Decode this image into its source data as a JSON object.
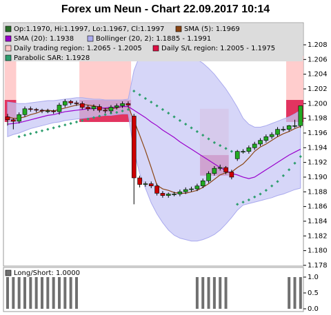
{
  "chart_data": [
    {
      "type": "candlestick",
      "title": "Forex um Neun - Chart 22.09.2017 10:14",
      "ohlc_label": "Op:1.1970, Hi:1.1997, Lo:1.1967, Cl:1.1997",
      "ohlc_color": "#2a6e2a",
      "up_color": "#22aa22",
      "down_color": "#cc0000",
      "candles": {
        "open": [
          1.1982,
          1.1978,
          1.1976,
          1.1985,
          1.1993,
          1.1992,
          1.1991,
          1.199,
          1.199,
          1.1989,
          1.1998,
          1.2003,
          1.2001,
          1.2,
          1.1995,
          1.1993,
          1.1996,
          1.1991,
          1.199,
          1.1995,
          1.1997,
          1.2,
          1.1983,
          1.1899,
          1.189,
          1.1891,
          1.1888,
          1.1878,
          1.1875,
          1.1877,
          1.1877,
          1.188,
          1.1883,
          1.1884,
          1.1888,
          1.1895,
          1.1905,
          1.1912,
          1.1913,
          1.1907,
          1.1925,
          1.1935,
          1.1935,
          1.194,
          1.1945,
          1.195,
          1.1955,
          1.1958,
          1.1965,
          1.1965,
          1.197,
          1.197
        ],
        "high": [
          1.1986,
          1.198,
          1.1988,
          1.1996,
          1.1996,
          1.1994,
          1.1993,
          1.1993,
          1.1992,
          1.2001,
          1.2006,
          1.2005,
          1.2004,
          1.2003,
          1.1998,
          1.1999,
          1.1999,
          1.1994,
          1.1998,
          1.2,
          1.2003,
          1.2003,
          1.1986,
          1.1902,
          1.1894,
          1.1894,
          1.1891,
          1.1881,
          1.1879,
          1.188,
          1.1883,
          1.1886,
          1.1887,
          1.1891,
          1.1898,
          1.1908,
          1.1915,
          1.1917,
          1.1915,
          1.191,
          1.1937,
          1.1938,
          1.1943,
          1.1948,
          1.1953,
          1.1958,
          1.1961,
          1.1968,
          1.1969,
          1.1971,
          1.1978,
          1.1997
        ],
        "low": [
          1.197,
          1.1965,
          1.1973,
          1.1982,
          1.1989,
          1.1988,
          1.1987,
          1.1987,
          1.1986,
          1.1985,
          1.1995,
          1.1998,
          1.1997,
          1.1992,
          1.199,
          1.199,
          1.1988,
          1.1987,
          1.1987,
          1.1992,
          1.1994,
          1.1995,
          1.1863,
          1.1886,
          1.1887,
          1.1885,
          1.1875,
          1.1872,
          1.1872,
          1.1874,
          1.1874,
          1.1877,
          1.188,
          1.1881,
          1.1885,
          1.1892,
          1.1902,
          1.1909,
          1.1904,
          1.1897,
          1.1922,
          1.1932,
          1.1932,
          1.1937,
          1.1942,
          1.1947,
          1.1952,
          1.1955,
          1.1962,
          1.1962,
          1.1967,
          1.1967
        ],
        "close": [
          1.1978,
          1.1976,
          1.1985,
          1.1993,
          1.1992,
          1.1991,
          1.199,
          1.199,
          1.1989,
          1.1998,
          1.2003,
          1.2001,
          1.2,
          1.1995,
          1.1993,
          1.1996,
          1.1991,
          1.199,
          1.1995,
          1.1997,
          1.2,
          1.1998,
          1.1899,
          1.189,
          1.1891,
          1.1888,
          1.1878,
          1.1875,
          1.1877,
          1.1877,
          1.188,
          1.1883,
          1.1884,
          1.1888,
          1.1895,
          1.1905,
          1.1912,
          1.1913,
          1.1907,
          1.19,
          1.1935,
          1.1935,
          1.194,
          1.1945,
          1.195,
          1.1955,
          1.1958,
          1.1965,
          1.1965,
          1.197,
          1.197,
          1.1997
        ]
      },
      "series": [
        {
          "name": "SMA (5): 1.1969",
          "style": "line",
          "color": "#8b4513",
          "values": [
            1.1982,
            1.198,
            1.198,
            1.1982,
            1.1985,
            1.1987,
            1.199,
            1.1991,
            1.199,
            1.1992,
            1.1994,
            1.1996,
            1.1998,
            1.1999,
            1.1998,
            1.1997,
            1.1995,
            1.1993,
            1.1993,
            1.1994,
            1.1996,
            1.1996,
            1.1977,
            1.1957,
            1.1936,
            1.1913,
            1.1889,
            1.1884,
            1.1882,
            1.1879,
            1.1878,
            1.1878,
            1.188,
            1.1882,
            1.1886,
            1.1891,
            1.1897,
            1.1903,
            1.1906,
            1.1907,
            1.1913,
            1.1918,
            1.1926,
            1.1935,
            1.1941,
            1.1945,
            1.195,
            1.1955,
            1.1959,
            1.1962,
            1.1966,
            1.1969
          ]
        },
        {
          "name": "SMA (20): 1.1938",
          "style": "line",
          "color": "#9900cc",
          "values": [
            1.1972,
            1.1973,
            1.1974,
            1.1976,
            1.1978,
            1.198,
            1.1982,
            1.1984,
            1.1985,
            1.1987,
            1.1989,
            1.199,
            1.1991,
            1.1992,
            1.1993,
            1.1993,
            1.1994,
            1.1994,
            1.1995,
            1.1995,
            1.1996,
            1.1996,
            1.1991,
            1.1986,
            1.1981,
            1.1975,
            1.197,
            1.1964,
            1.1959,
            1.1954,
            1.1948,
            1.1943,
            1.1938,
            1.1933,
            1.1928,
            1.1923,
            1.1918,
            1.1913,
            1.1909,
            1.1905,
            1.1903,
            1.19,
            1.1898,
            1.19,
            1.1905,
            1.191,
            1.1915,
            1.192,
            1.1925,
            1.193,
            1.1934,
            1.1938
          ]
        },
        {
          "name": "Bollinger (20, 2): 1.1885 - 1.1991",
          "style": "band",
          "color": "#aaaaee",
          "upper": [
            1.2002,
            1.2001,
            1.2,
            1.2,
            1.2001,
            1.2002,
            1.2003,
            1.2004,
            1.2004,
            1.2005,
            1.2006,
            1.2007,
            1.2008,
            1.2008,
            1.2007,
            1.2006,
            1.2006,
            1.2005,
            1.2005,
            1.2005,
            1.2005,
            1.2006,
            1.2045,
            1.2065,
            1.2078,
            1.2082,
            1.2082,
            1.208,
            1.2078,
            1.2075,
            1.2072,
            1.2068,
            1.2064,
            1.206,
            1.2055,
            1.2048,
            1.204,
            1.203,
            1.202,
            1.2008,
            1.1995,
            1.198,
            1.1972,
            1.1968,
            1.1968,
            1.197,
            1.1973,
            1.1976,
            1.1979,
            1.1982,
            1.1986,
            1.1991
          ],
          "lower": [
            1.1955,
            1.1958,
            1.196,
            1.1963,
            1.1966,
            1.1968,
            1.197,
            1.1972,
            1.1974,
            1.1975,
            1.1977,
            1.1978,
            1.1979,
            1.198,
            1.1981,
            1.1982,
            1.1983,
            1.1984,
            1.1984,
            1.1985,
            1.1986,
            1.1986,
            1.1935,
            1.1905,
            1.1885,
            1.1865,
            1.185,
            1.1838,
            1.1828,
            1.1821,
            1.1817,
            1.1815,
            1.1813,
            1.1813,
            1.1815,
            1.1818,
            1.1822,
            1.1828,
            1.1836,
            1.1845,
            1.1855,
            1.1862,
            1.1864,
            1.1866,
            1.1868,
            1.187,
            1.1872,
            1.1875,
            1.1877,
            1.188,
            1.1883,
            1.1885
          ]
        },
        {
          "name": "Parabolic SAR: 1.1928",
          "style": "dots",
          "color": "#2e9e6e",
          "values": [
            null,
            null,
            1.1955,
            1.1957,
            1.1959,
            1.1961,
            1.1963,
            1.1965,
            1.1967,
            1.1969,
            1.1971,
            1.1973,
            1.1975,
            1.1977,
            1.1979,
            1.1981,
            1.1983,
            1.1985,
            1.1987,
            1.1988,
            1.199,
            1.1992,
            1.2017,
            1.2012,
            1.2007,
            1.2002,
            1.1997,
            1.1992,
            1.1987,
            1.1982,
            1.1977,
            1.1972,
            1.1967,
            1.1962,
            1.1957,
            1.1952,
            1.1947,
            1.1943,
            1.1939,
            1.1935,
            1.1863,
            1.1866,
            1.1869,
            1.1873,
            1.1877,
            1.1882,
            1.1888,
            1.1894,
            1.1902,
            1.191,
            1.1919,
            1.1928
          ]
        }
      ],
      "regions": [
        {
          "name": "Daily trading region: 1.2065 - 1.2005",
          "color": "#ffc4c4",
          "spans": [
            {
              "start": 0,
              "end": 1,
              "low": 1.2005,
              "high": 1.2065
            },
            {
              "start": 13,
              "end": 21,
              "low": 1.2005,
              "high": 1.2065
            },
            {
              "start": 34,
              "end": 38,
              "low": 1.193,
              "high": 1.1993
            },
            {
              "start": 49,
              "end": 51,
              "low": 1.2005,
              "high": 1.2065
            }
          ]
        },
        {
          "name": "Daily S/L region: 1.2005 - 1.1975",
          "color": "#dd1144",
          "spans": [
            {
              "start": 0,
              "end": 1,
              "low": 1.1975,
              "high": 1.2005
            },
            {
              "start": 13,
              "end": 21,
              "low": 1.1975,
              "high": 1.2005
            },
            {
              "start": 34,
              "end": 38,
              "low": 1.1902,
              "high": 1.193
            },
            {
              "start": 49,
              "end": 51,
              "low": 1.1975,
              "high": 1.2005
            }
          ]
        }
      ],
      "ylim": [
        1.1779,
        1.211
      ],
      "yticks": [
        {
          "value": 1.178,
          "label": "1.178"
        },
        {
          "value": 1.18,
          "label": "1.180"
        },
        1.182,
        1.184,
        1.186,
        1.188,
        {
          "value": 1.19,
          "label": "1.190"
        },
        1.192,
        1.194,
        1.196,
        1.198,
        {
          "value": 1.2,
          "label": "1.200"
        },
        1.202,
        1.204,
        1.206,
        1.208
      ]
    },
    {
      "type": "bar",
      "series": [
        {
          "name": "Long/Short: 1.0000",
          "color": "#707070",
          "values": [
            1,
            1,
            1,
            1,
            1,
            1,
            1,
            1,
            1,
            1,
            1,
            1,
            1,
            0,
            0,
            0,
            0,
            0,
            0,
            0,
            0,
            0,
            0,
            0,
            0,
            0,
            0,
            0,
            0,
            0,
            0,
            0,
            0,
            1,
            1,
            1,
            1,
            1,
            1,
            0,
            0,
            0,
            0,
            0,
            0,
            0,
            0,
            0,
            0,
            1,
            1,
            1
          ]
        }
      ],
      "ylim": [
        -0.087,
        1.304
      ],
      "yticks": [
        {
          "value": 0,
          "label": "0.0"
        },
        {
          "value": 0.5,
          "label": "0.5"
        },
        {
          "value": 1,
          "label": "1.0"
        }
      ]
    }
  ]
}
